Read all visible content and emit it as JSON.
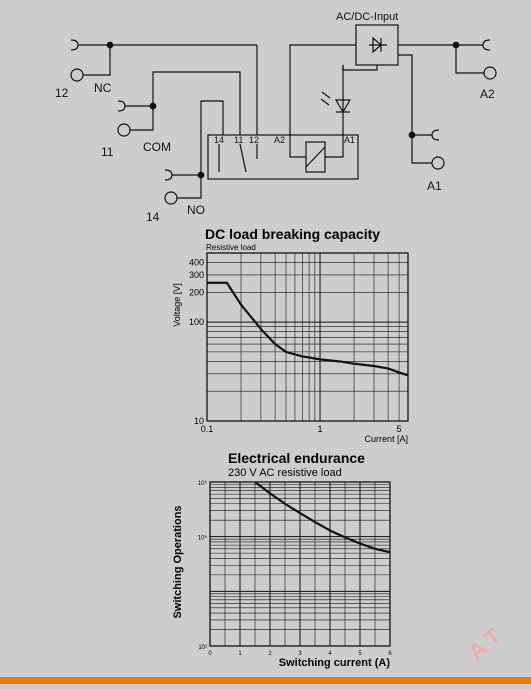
{
  "colors": {
    "background": "#cdcdcd",
    "line": "#111111",
    "accent_bar": "#e27a16",
    "watermark": "#f3a39a"
  },
  "circuit": {
    "labels": {
      "ac_dc_input": "AC/DC-Input",
      "t12": "12",
      "nc": "NC",
      "t11": "11",
      "com": "COM",
      "t14": "14",
      "no": "NO",
      "a2": "A2",
      "a1": "A1",
      "box_14": "14",
      "box_11": "11",
      "box_12": "12",
      "box_a2": "A2",
      "box_a1": "A1"
    }
  },
  "watermark": {
    "text": "A T"
  },
  "chart_data": [
    {
      "type": "line",
      "title": "DC load breaking capacity",
      "subtitle": "Resistive load",
      "xlabel": "Current [A]",
      "ylabel": "Voltage [V]",
      "xscale": "log",
      "yscale": "log",
      "xlim": [
        0.1,
        6
      ],
      "ylim": [
        10,
        500
      ],
      "x_ticks": [
        {
          "v": 0.1,
          "label": "0.1"
        },
        {
          "v": 1,
          "label": "1"
        },
        {
          "v": 5,
          "label": "5"
        }
      ],
      "y_ticks": [
        {
          "v": 10,
          "label": "10"
        },
        {
          "v": 100,
          "label": "100"
        },
        {
          "v": 200,
          "label": "200"
        },
        {
          "v": 300,
          "label": "300"
        },
        {
          "v": 400,
          "label": "400"
        }
      ],
      "series": [
        {
          "x": [
            0.1,
            0.15,
            0.17,
            0.2,
            0.25,
            0.3,
            0.4,
            0.5,
            0.7,
            1.0,
            1.5,
            2,
            3,
            4,
            5,
            6
          ],
          "y": [
            250,
            250,
            200,
            150,
            110,
            85,
            60,
            50,
            45,
            42,
            40,
            38,
            36,
            34,
            31,
            29
          ]
        }
      ],
      "grid": true
    },
    {
      "type": "line",
      "title": "Electrical endurance",
      "subtitle": "230 V AC resistive load",
      "xlabel": "Switching current (A)",
      "ylabel": "Switching Operations",
      "yscale": "log",
      "xlim": [
        0,
        6
      ],
      "ylim": [
        1000,
        1000000
      ],
      "x_ticks": [
        {
          "v": 0,
          "label": "0"
        },
        {
          "v": 1,
          "label": "1"
        },
        {
          "v": 2,
          "label": "2"
        },
        {
          "v": 3,
          "label": "3"
        },
        {
          "v": 4,
          "label": "4"
        },
        {
          "v": 5,
          "label": "5"
        },
        {
          "v": 6,
          "label": "6"
        }
      ],
      "y_ticks": [
        {
          "v": 1000,
          "label": "10³"
        },
        {
          "v": 100000,
          "label": "10⁵"
        },
        {
          "v": 1000000,
          "label": "10⁶"
        }
      ],
      "series": [
        {
          "x": [
            1.5,
            2,
            2.5,
            3,
            3.5,
            4,
            4.5,
            5,
            5.5,
            6
          ],
          "y": [
            1000000,
            620000,
            400000,
            270000,
            185000,
            130000,
            97000,
            75000,
            60000,
            52000
          ]
        }
      ],
      "grid": true
    }
  ]
}
